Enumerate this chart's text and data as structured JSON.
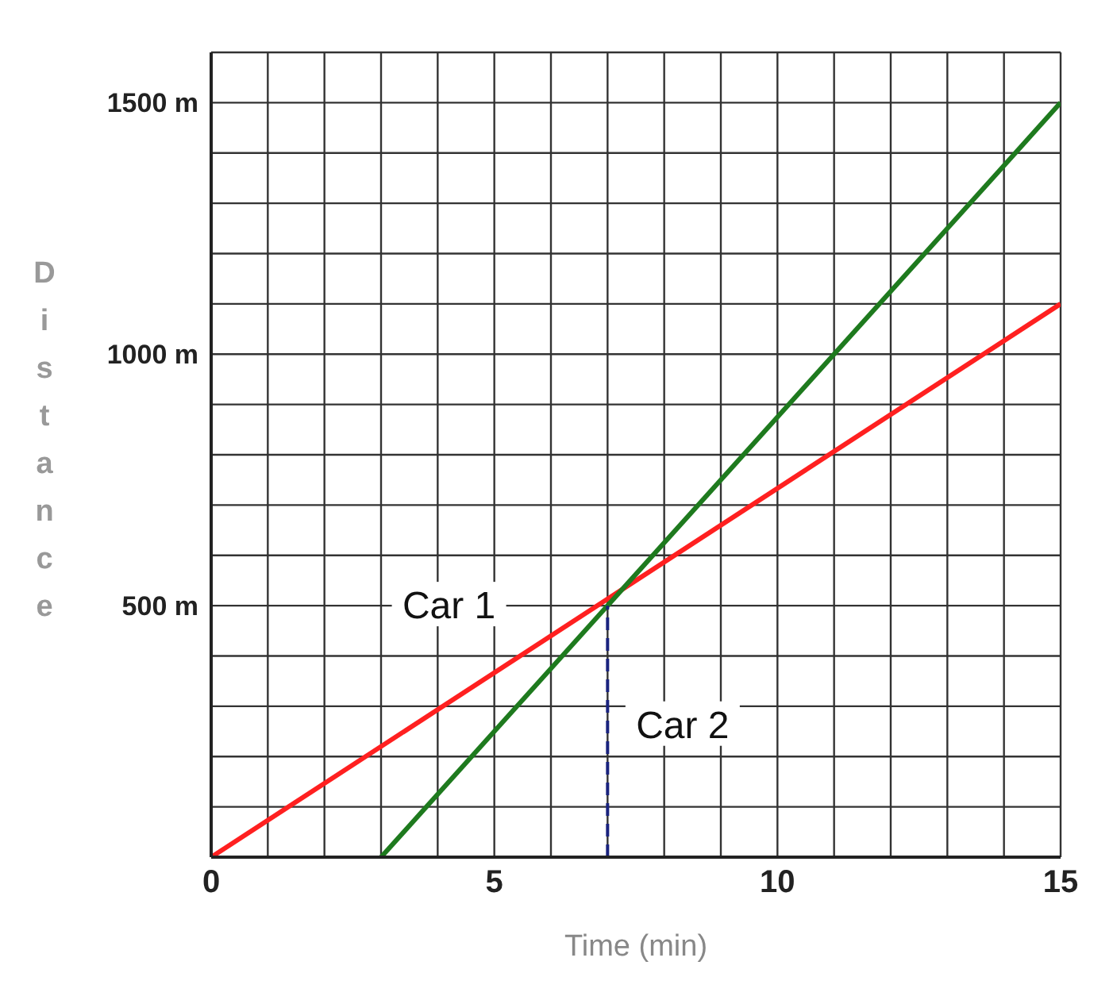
{
  "chart_data": {
    "type": "line",
    "xlabel": "Time (min)",
    "ylabel": "Distance",
    "xlim": [
      0,
      15
    ],
    "ylim": [
      0,
      1600
    ],
    "xticks": [
      0,
      {
        "value": 1,
        "label": null
      },
      {
        "value": 2,
        "label": null
      },
      {
        "value": 3,
        "label": null
      },
      {
        "value": 4,
        "label": null
      },
      5,
      {
        "value": 6,
        "label": null
      },
      {
        "value": 7,
        "label": null
      },
      {
        "value": 8,
        "label": null
      },
      {
        "value": 9,
        "label": null
      },
      10,
      {
        "value": 11,
        "label": null
      },
      {
        "value": 12,
        "label": null
      },
      {
        "value": 13,
        "label": null
      },
      {
        "value": 14,
        "label": null
      },
      15
    ],
    "yticks": [
      {
        "value": 0,
        "label": null
      },
      {
        "value": 100,
        "label": null
      },
      {
        "value": 200,
        "label": null
      },
      {
        "value": 300,
        "label": null
      },
      {
        "value": 400,
        "label": null
      },
      {
        "value": 500,
        "label": "500 m"
      },
      {
        "value": 600,
        "label": null
      },
      {
        "value": 700,
        "label": null
      },
      {
        "value": 800,
        "label": null
      },
      {
        "value": 900,
        "label": null
      },
      {
        "value": 1000,
        "label": "1000 m"
      },
      {
        "value": 1100,
        "label": null
      },
      {
        "value": 1200,
        "label": null
      },
      {
        "value": 1300,
        "label": null
      },
      {
        "value": 1400,
        "label": null
      },
      {
        "value": 1500,
        "label": "1500 m"
      },
      {
        "value": 1600,
        "label": null
      }
    ],
    "grid": true,
    "marker": "none",
    "line_style": "solid",
    "series": [
      {
        "color": "#ff2020",
        "x": [
          0,
          15
        ],
        "values": [
          0,
          1100
        ]
      },
      {
        "color": "#1e7a1e",
        "x": [
          3,
          15
        ],
        "values": [
          0,
          1500
        ]
      },
      {
        "color": "#1a237e",
        "x": [
          7,
          7
        ],
        "values": [
          0,
          500
        ],
        "line_style": "dashed"
      }
    ],
    "annotations": [
      "Car 1",
      "Car 2"
    ]
  }
}
